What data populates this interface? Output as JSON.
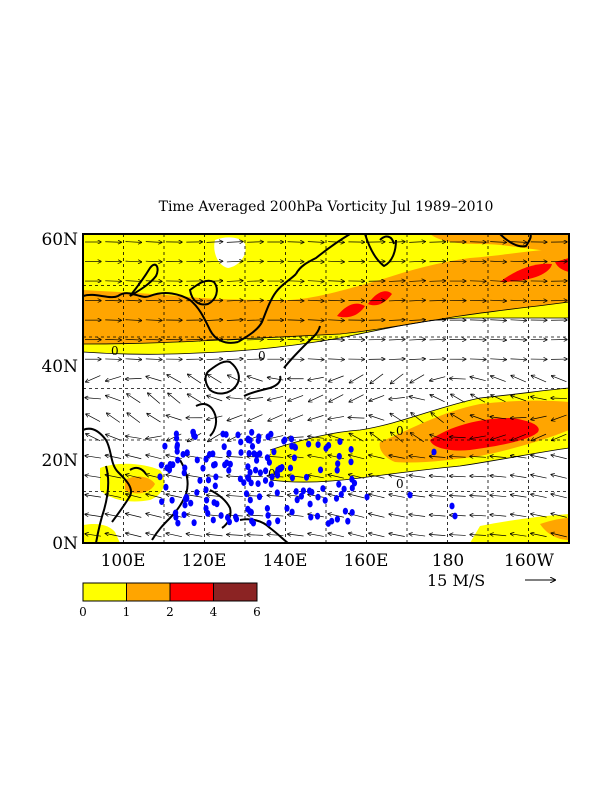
{
  "title": "Time Averaged 200hPa Vorticity  Jul 1989–2010",
  "map": {
    "lat_labels": [
      "60N",
      "40N",
      "20N",
      "0N"
    ],
    "lon_labels": [
      "100E",
      "120E",
      "140E",
      "160E",
      "180",
      "160W"
    ],
    "lon_range": [
      "90E",
      "150W"
    ],
    "lat_range": [
      "0N",
      "60N"
    ],
    "graticule": "dashed every 10 degrees",
    "land_outline_color": "#000000"
  },
  "vector_scale": {
    "label": "15 M/S",
    "arrow": "right-arrow"
  },
  "colorbar": {
    "ticks": [
      "0",
      "1",
      "2",
      "4",
      "6"
    ],
    "colors": [
      "#ffff00",
      "#ffa500",
      "#ff0000",
      "#8b2323"
    ]
  },
  "markers": {
    "color": "#0000ff",
    "shape": "dot",
    "meaning": "storm genesis points"
  },
  "fill_colors": {
    "level_0_1": "#ffff00",
    "level_1_2": "#ffa500",
    "level_2_4": "#ff0000",
    "level_4_6": "#8b2323"
  }
}
